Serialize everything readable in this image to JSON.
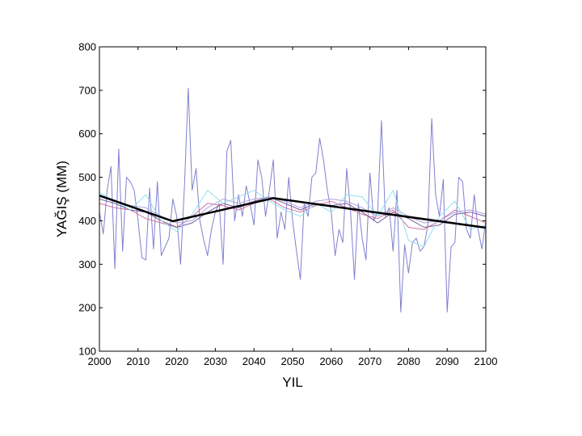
{
  "chart_data": {
    "type": "line",
    "title": "",
    "xlabel": "YIL",
    "ylabel": "YAĞIŞ (MM)",
    "xlim": [
      2000,
      2100
    ],
    "ylim": [
      100,
      800
    ],
    "xticks": [
      2000,
      2010,
      2020,
      2030,
      2040,
      2050,
      2060,
      2070,
      2080,
      2090,
      2100
    ],
    "yticks": [
      100,
      200,
      300,
      400,
      500,
      600,
      700,
      800
    ],
    "grid": false,
    "legend": "none",
    "series": [
      {
        "color": "#8080d0",
        "style": "raw",
        "x": [
          2000,
          2001,
          2002,
          2003,
          2004,
          2005,
          2006,
          2007,
          2008,
          2009,
          2010,
          2011,
          2012,
          2013,
          2014,
          2015,
          2016,
          2017,
          2018,
          2019,
          2020,
          2021,
          2022,
          2023,
          2024,
          2025,
          2026,
          2027,
          2028,
          2029,
          2030,
          2031,
          2032,
          2033,
          2034,
          2035,
          2036,
          2037,
          2038,
          2039,
          2040,
          2041,
          2042,
          2043,
          2044,
          2045,
          2046,
          2047,
          2048,
          2049,
          2050,
          2051,
          2052,
          2053,
          2054,
          2055,
          2056,
          2057,
          2058,
          2059,
          2060,
          2061,
          2062,
          2063,
          2064,
          2065,
          2066,
          2067,
          2068,
          2069,
          2070,
          2071,
          2072,
          2073,
          2074,
          2075,
          2076,
          2077,
          2078,
          2079,
          2080,
          2081,
          2082,
          2083,
          2084,
          2085,
          2086,
          2087,
          2088,
          2089,
          2090,
          2091,
          2092,
          2093,
          2094,
          2095,
          2096,
          2097,
          2098,
          2099,
          2100
        ],
        "values": [
          420,
          370,
          470,
          525,
          290,
          565,
          330,
          500,
          490,
          470,
          400,
          315,
          310,
          475,
          335,
          490,
          320,
          340,
          360,
          450,
          410,
          300,
          480,
          705,
          470,
          520,
          400,
          355,
          320,
          380,
          420,
          440,
          300,
          560,
          585,
          400,
          460,
          410,
          480,
          440,
          390,
          540,
          500,
          410,
          470,
          540,
          360,
          420,
          380,
          500,
          400,
          330,
          265,
          440,
          410,
          500,
          510,
          590,
          540,
          470,
          420,
          320,
          380,
          350,
          520,
          420,
          265,
          440,
          360,
          310,
          510,
          400,
          420,
          630,
          410,
          430,
          330,
          470,
          190,
          345,
          280,
          350,
          360,
          330,
          340,
          390,
          635,
          460,
          410,
          495,
          190,
          340,
          350,
          500,
          490,
          380,
          360,
          460,
          380,
          335,
          400
        ]
      },
      {
        "color": "#d070a0",
        "style": "smooth",
        "x": [
          2000,
          2004,
          2008,
          2012,
          2016,
          2020,
          2024,
          2028,
          2032,
          2036,
          2040,
          2044,
          2048,
          2052,
          2056,
          2060,
          2064,
          2068,
          2072,
          2076,
          2080,
          2084,
          2088,
          2092,
          2096,
          2100
        ],
        "values": [
          440,
          430,
          425,
          405,
          395,
          385,
          410,
          440,
          435,
          425,
          440,
          450,
          430,
          420,
          435,
          445,
          430,
          415,
          405,
          425,
          385,
          380,
          400,
          425,
          410,
          395
        ]
      },
      {
        "color": "#7a5a9a",
        "style": "smooth",
        "x": [
          2000,
          2004,
          2008,
          2012,
          2016,
          2020,
          2024,
          2028,
          2032,
          2036,
          2040,
          2044,
          2048,
          2052,
          2056,
          2060,
          2064,
          2068,
          2072,
          2076,
          2080,
          2084,
          2088,
          2092,
          2096,
          2100
        ],
        "values": [
          450,
          440,
          425,
          420,
          400,
          385,
          395,
          420,
          440,
          430,
          445,
          455,
          440,
          425,
          440,
          435,
          440,
          420,
          395,
          420,
          405,
          385,
          390,
          415,
          420,
          410
        ]
      },
      {
        "color": "#b0a0e0",
        "style": "smooth",
        "x": [
          2000,
          2004,
          2008,
          2012,
          2016,
          2020,
          2024,
          2028,
          2032,
          2036,
          2040,
          2044,
          2048,
          2052,
          2056,
          2060,
          2064,
          2068,
          2072,
          2076,
          2080,
          2084,
          2088,
          2092,
          2096,
          2100
        ],
        "values": [
          455,
          445,
          435,
          430,
          410,
          395,
          400,
          430,
          450,
          440,
          450,
          455,
          445,
          430,
          445,
          450,
          445,
          430,
          410,
          430,
          410,
          395,
          400,
          420,
          425,
          415
        ]
      },
      {
        "color": "#90e0f0",
        "style": "smooth",
        "x": [
          2000,
          2004,
          2008,
          2012,
          2016,
          2020,
          2024,
          2028,
          2032,
          2036,
          2040,
          2044,
          2048,
          2052,
          2056,
          2060,
          2064,
          2068,
          2072,
          2076,
          2080,
          2084,
          2088,
          2092,
          2096,
          2100
        ],
        "values": [
          465,
          445,
          425,
          460,
          400,
          375,
          415,
          470,
          440,
          455,
          470,
          445,
          425,
          410,
          440,
          420,
          460,
          455,
          410,
          470,
          355,
          340,
          410,
          445,
          380,
          390
        ]
      },
      {
        "color": "#000000",
        "style": "trend",
        "x": [
          2000,
          2019,
          2045,
          2100
        ],
        "values": [
          458,
          399,
          452,
          384
        ]
      }
    ]
  }
}
